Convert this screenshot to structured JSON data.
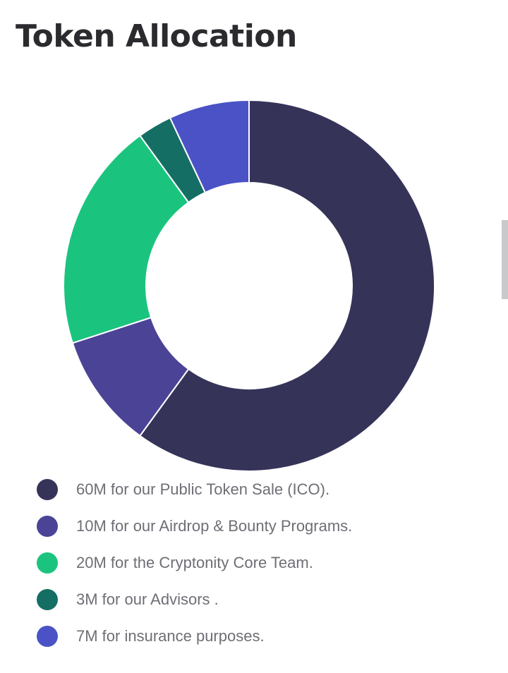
{
  "chart_data": {
    "type": "pie",
    "title": "Token Allocation",
    "categories": [
      "60M for our Public Token Sale (ICO).",
      "10M for our Airdrop & Bounty Programs.",
      "20M for the Cryptonity Core Team.",
      "3M for our Advisors .",
      "7M for insurance purposes."
    ],
    "values": [
      60,
      10,
      20,
      3,
      7
    ],
    "colors": [
      "#363359",
      "#4a4396",
      "#1ac47e",
      "#156e64",
      "#4a52c6"
    ],
    "legend_position": "bottom"
  }
}
